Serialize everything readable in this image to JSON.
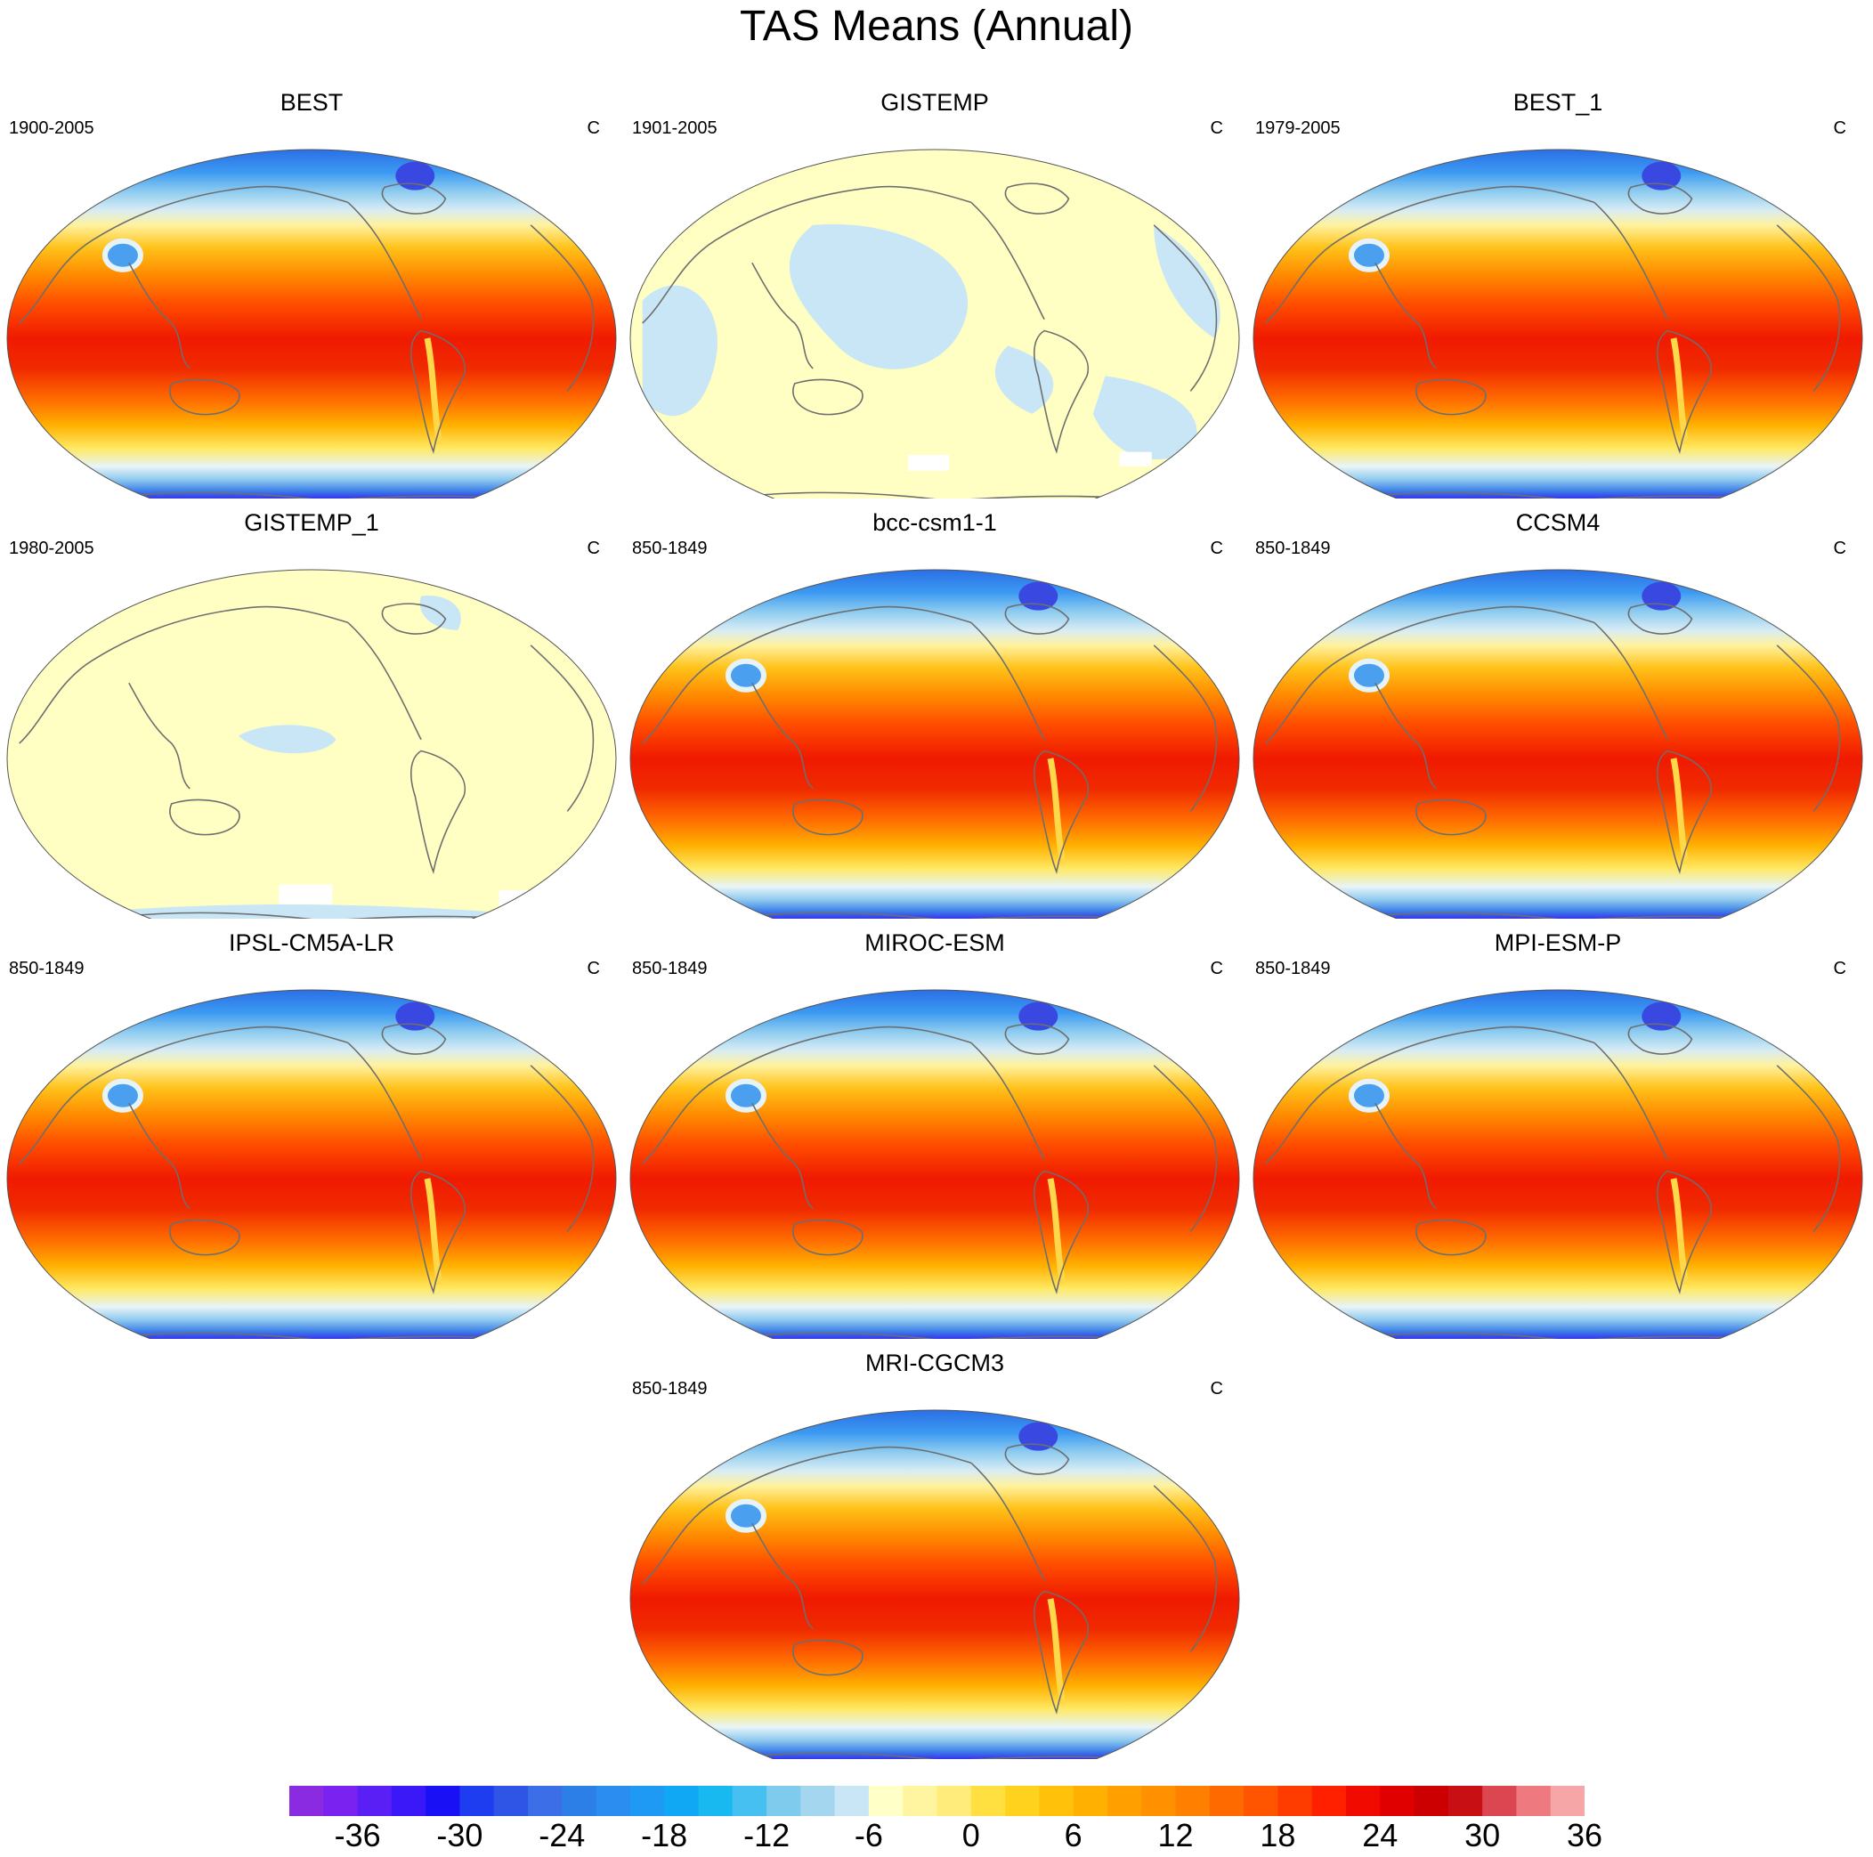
{
  "title": "TAS Means (Annual)",
  "units": "C",
  "panels": [
    {
      "name": "BEST",
      "period": "1900-2005",
      "coverage": "full"
    },
    {
      "name": "GISTEMP",
      "period": "1901-2005",
      "coverage": "anomaly-light"
    },
    {
      "name": "BEST_1",
      "period": "1979-2005",
      "coverage": "full"
    },
    {
      "name": "GISTEMP_1",
      "period": "1980-2005",
      "coverage": "anomaly-mostly-zero"
    },
    {
      "name": "bcc-csm1-1",
      "period": "850-1849",
      "coverage": "full"
    },
    {
      "name": "CCSM4",
      "period": "850-1849",
      "coverage": "full"
    },
    {
      "name": "IPSL-CM5A-LR",
      "period": "850-1849",
      "coverage": "full"
    },
    {
      "name": "MIROC-ESM",
      "period": "850-1849",
      "coverage": "full"
    },
    {
      "name": "MPI-ESM-P",
      "period": "850-1849",
      "coverage": "full"
    },
    {
      "name": "MRI-CGCM3",
      "period": "850-1849",
      "coverage": "full"
    }
  ],
  "colorbar": {
    "min": -42,
    "max": 42,
    "step": 2,
    "tick_labels": [
      "-36",
      "-30",
      "-24",
      "-18",
      "-12",
      "-6",
      "0",
      "6",
      "12",
      "18",
      "24",
      "30",
      "36"
    ],
    "tick_values": [
      -36,
      -30,
      -24,
      -18,
      -12,
      -6,
      0,
      6,
      12,
      18,
      24,
      30,
      36
    ],
    "colors": [
      "#8a2be2",
      "#7a22f0",
      "#5a1ff5",
      "#3a18f8",
      "#1a10f5",
      "#1e3cf0",
      "#2f55e6",
      "#3c6ee8",
      "#2d7fe8",
      "#2b8df0",
      "#1e9af5",
      "#10a8f5",
      "#18b8f0",
      "#45c0f0",
      "#7ecbee",
      "#a4d6f0",
      "#c8e6f5",
      "#ffffc8",
      "#fff5a0",
      "#ffec7a",
      "#ffe040",
      "#ffd21e",
      "#ffc10a",
      "#ffb000",
      "#ffa000",
      "#ff9000",
      "#ff7f00",
      "#ff6a00",
      "#ff5500",
      "#ff3c00",
      "#ff2000",
      "#f00a00",
      "#e00000",
      "#cc0000",
      "#c80f14",
      "#dc4650",
      "#ee7a80",
      "#f7a6a8"
    ]
  }
}
